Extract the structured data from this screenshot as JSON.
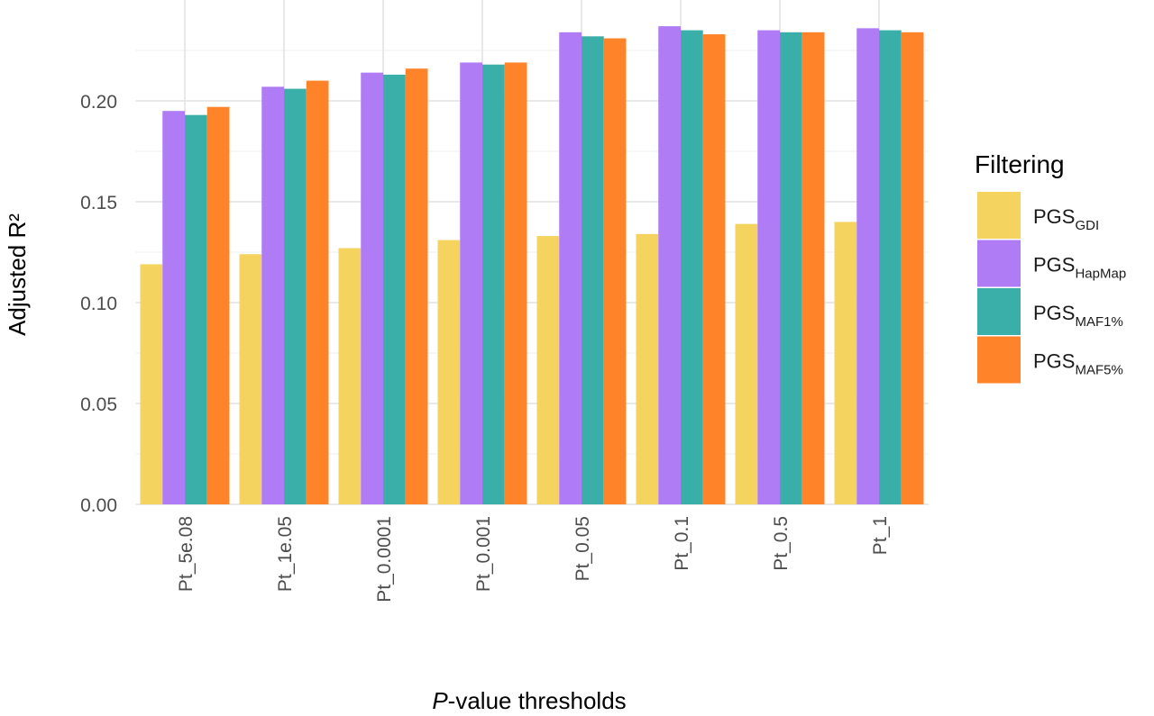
{
  "chart_data": {
    "type": "bar",
    "xlabel_italic": "P",
    "xlabel_rest": "-value thresholds",
    "ylabel": "Adjusted R²",
    "ylim": [
      0,
      0.25
    ],
    "yticks": [
      "0.00",
      "0.05",
      "0.10",
      "0.15",
      "0.20"
    ],
    "ytick_values": [
      0,
      0.05,
      0.1,
      0.15,
      0.2
    ],
    "grid": true,
    "legend_placement": "right",
    "categories": [
      "Pt_5e.08",
      "Pt_1e.05",
      "Pt_0.0001",
      "Pt_0.001",
      "Pt_0.05",
      "Pt_0.1",
      "Pt_0.5",
      "Pt_1"
    ],
    "legend_title": "Filtering",
    "series": [
      {
        "name": "PGS",
        "sub": "GDI",
        "color": "#F4D35E",
        "values": [
          0.119,
          0.124,
          0.127,
          0.131,
          0.133,
          0.134,
          0.139,
          0.14
        ]
      },
      {
        "name": "PGS",
        "sub": "HapMap",
        "color": "#B07CF6",
        "values": [
          0.195,
          0.207,
          0.214,
          0.219,
          0.234,
          0.237,
          0.235,
          0.236
        ]
      },
      {
        "name": "PGS",
        "sub": "MAF1%",
        "color": "#3AAFA9",
        "values": [
          0.193,
          0.206,
          0.213,
          0.218,
          0.232,
          0.235,
          0.234,
          0.235
        ]
      },
      {
        "name": "PGS",
        "sub": "MAF5%",
        "color": "#FF8328",
        "values": [
          0.197,
          0.21,
          0.216,
          0.219,
          0.231,
          0.233,
          0.234,
          0.234
        ]
      }
    ]
  }
}
